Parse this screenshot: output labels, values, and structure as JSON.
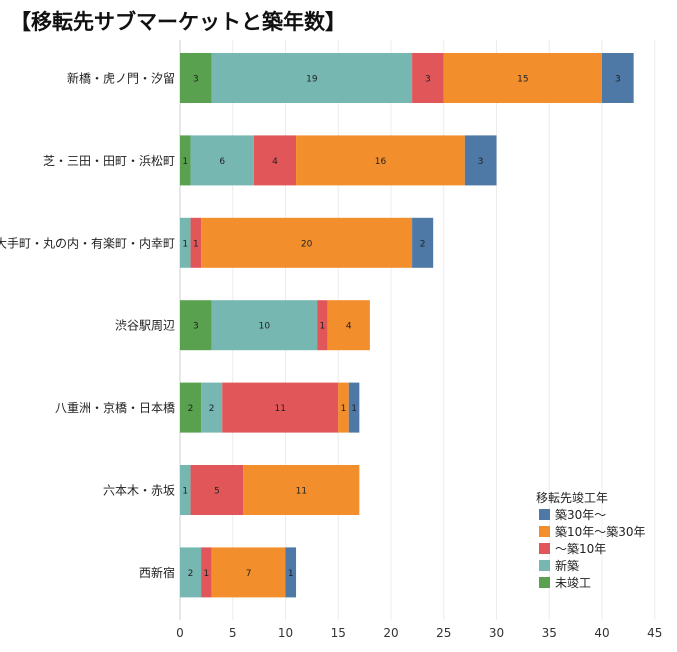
{
  "title": "【移転先サブマーケットと築年数】",
  "chart_data": {
    "type": "bar",
    "orientation": "horizontal",
    "stacked": true,
    "title": "【移転先サブマーケットと築年数】",
    "categories": [
      "新橋・虎ノ門・汐留",
      "芝・三田・田町・浜松町",
      "大手町・丸の内・有楽町・内幸町",
      "渋谷駅周辺",
      "八重洲・京橋・日本橋",
      "六本木・赤坂",
      "西新宿"
    ],
    "series": [
      {
        "name": "未竣工",
        "color": "#59a14f",
        "values": [
          3,
          1,
          0,
          3,
          2,
          0,
          0
        ]
      },
      {
        "name": "新築",
        "color": "#76b7b2",
        "values": [
          19,
          6,
          1,
          10,
          2,
          1,
          2
        ]
      },
      {
        "name": "～築10年",
        "color": "#e15759",
        "values": [
          3,
          4,
          1,
          1,
          11,
          5,
          1
        ]
      },
      {
        "name": "築10年～築30年",
        "color": "#f28e2b",
        "values": [
          15,
          16,
          20,
          4,
          1,
          11,
          7
        ]
      },
      {
        "name": "築30年～",
        "color": "#4e79a7",
        "values": [
          3,
          3,
          2,
          0,
          1,
          0,
          1
        ]
      }
    ],
    "xlim": [
      0,
      45
    ],
    "xticks": [
      0,
      5,
      10,
      15,
      20,
      25,
      30,
      35,
      40,
      45
    ],
    "xlabel": "",
    "ylabel": "",
    "grid": true,
    "legend": {
      "title": "移転先竣工年",
      "position": "bottom-right",
      "order": [
        "築30年～",
        "築10年～築30年",
        "～築10年",
        "新築",
        "未竣工"
      ]
    }
  }
}
